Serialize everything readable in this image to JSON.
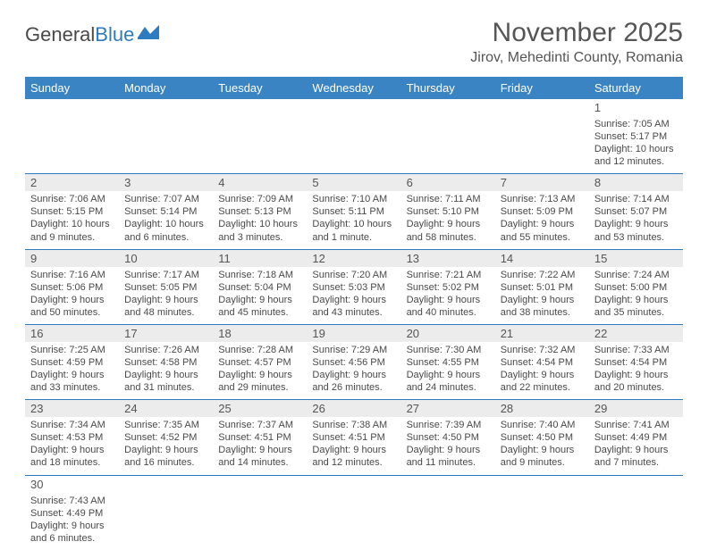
{
  "logo": {
    "text1": "General",
    "text2": "Blue"
  },
  "title": "November 2025",
  "subtitle": "Jirov, Mehedinti County, Romania",
  "colors": {
    "header_bg": "#3b84c4",
    "border": "#2f7bbf",
    "num_bg": "#ececec",
    "text": "#4a4a4a"
  },
  "weekdays": [
    "Sunday",
    "Monday",
    "Tuesday",
    "Wednesday",
    "Thursday",
    "Friday",
    "Saturday"
  ],
  "weeks": [
    [
      null,
      null,
      null,
      null,
      null,
      null,
      {
        "n": "1",
        "sunrise": "Sunrise: 7:05 AM",
        "sunset": "Sunset: 5:17 PM",
        "day": "Daylight: 10 hours and 12 minutes."
      }
    ],
    [
      {
        "n": "2",
        "sunrise": "Sunrise: 7:06 AM",
        "sunset": "Sunset: 5:15 PM",
        "day": "Daylight: 10 hours and 9 minutes."
      },
      {
        "n": "3",
        "sunrise": "Sunrise: 7:07 AM",
        "sunset": "Sunset: 5:14 PM",
        "day": "Daylight: 10 hours and 6 minutes."
      },
      {
        "n": "4",
        "sunrise": "Sunrise: 7:09 AM",
        "sunset": "Sunset: 5:13 PM",
        "day": "Daylight: 10 hours and 3 minutes."
      },
      {
        "n": "5",
        "sunrise": "Sunrise: 7:10 AM",
        "sunset": "Sunset: 5:11 PM",
        "day": "Daylight: 10 hours and 1 minute."
      },
      {
        "n": "6",
        "sunrise": "Sunrise: 7:11 AM",
        "sunset": "Sunset: 5:10 PM",
        "day": "Daylight: 9 hours and 58 minutes."
      },
      {
        "n": "7",
        "sunrise": "Sunrise: 7:13 AM",
        "sunset": "Sunset: 5:09 PM",
        "day": "Daylight: 9 hours and 55 minutes."
      },
      {
        "n": "8",
        "sunrise": "Sunrise: 7:14 AM",
        "sunset": "Sunset: 5:07 PM",
        "day": "Daylight: 9 hours and 53 minutes."
      }
    ],
    [
      {
        "n": "9",
        "sunrise": "Sunrise: 7:16 AM",
        "sunset": "Sunset: 5:06 PM",
        "day": "Daylight: 9 hours and 50 minutes."
      },
      {
        "n": "10",
        "sunrise": "Sunrise: 7:17 AM",
        "sunset": "Sunset: 5:05 PM",
        "day": "Daylight: 9 hours and 48 minutes."
      },
      {
        "n": "11",
        "sunrise": "Sunrise: 7:18 AM",
        "sunset": "Sunset: 5:04 PM",
        "day": "Daylight: 9 hours and 45 minutes."
      },
      {
        "n": "12",
        "sunrise": "Sunrise: 7:20 AM",
        "sunset": "Sunset: 5:03 PM",
        "day": "Daylight: 9 hours and 43 minutes."
      },
      {
        "n": "13",
        "sunrise": "Sunrise: 7:21 AM",
        "sunset": "Sunset: 5:02 PM",
        "day": "Daylight: 9 hours and 40 minutes."
      },
      {
        "n": "14",
        "sunrise": "Sunrise: 7:22 AM",
        "sunset": "Sunset: 5:01 PM",
        "day": "Daylight: 9 hours and 38 minutes."
      },
      {
        "n": "15",
        "sunrise": "Sunrise: 7:24 AM",
        "sunset": "Sunset: 5:00 PM",
        "day": "Daylight: 9 hours and 35 minutes."
      }
    ],
    [
      {
        "n": "16",
        "sunrise": "Sunrise: 7:25 AM",
        "sunset": "Sunset: 4:59 PM",
        "day": "Daylight: 9 hours and 33 minutes."
      },
      {
        "n": "17",
        "sunrise": "Sunrise: 7:26 AM",
        "sunset": "Sunset: 4:58 PM",
        "day": "Daylight: 9 hours and 31 minutes."
      },
      {
        "n": "18",
        "sunrise": "Sunrise: 7:28 AM",
        "sunset": "Sunset: 4:57 PM",
        "day": "Daylight: 9 hours and 29 minutes."
      },
      {
        "n": "19",
        "sunrise": "Sunrise: 7:29 AM",
        "sunset": "Sunset: 4:56 PM",
        "day": "Daylight: 9 hours and 26 minutes."
      },
      {
        "n": "20",
        "sunrise": "Sunrise: 7:30 AM",
        "sunset": "Sunset: 4:55 PM",
        "day": "Daylight: 9 hours and 24 minutes."
      },
      {
        "n": "21",
        "sunrise": "Sunrise: 7:32 AM",
        "sunset": "Sunset: 4:54 PM",
        "day": "Daylight: 9 hours and 22 minutes."
      },
      {
        "n": "22",
        "sunrise": "Sunrise: 7:33 AM",
        "sunset": "Sunset: 4:54 PM",
        "day": "Daylight: 9 hours and 20 minutes."
      }
    ],
    [
      {
        "n": "23",
        "sunrise": "Sunrise: 7:34 AM",
        "sunset": "Sunset: 4:53 PM",
        "day": "Daylight: 9 hours and 18 minutes."
      },
      {
        "n": "24",
        "sunrise": "Sunrise: 7:35 AM",
        "sunset": "Sunset: 4:52 PM",
        "day": "Daylight: 9 hours and 16 minutes."
      },
      {
        "n": "25",
        "sunrise": "Sunrise: 7:37 AM",
        "sunset": "Sunset: 4:51 PM",
        "day": "Daylight: 9 hours and 14 minutes."
      },
      {
        "n": "26",
        "sunrise": "Sunrise: 7:38 AM",
        "sunset": "Sunset: 4:51 PM",
        "day": "Daylight: 9 hours and 12 minutes."
      },
      {
        "n": "27",
        "sunrise": "Sunrise: 7:39 AM",
        "sunset": "Sunset: 4:50 PM",
        "day": "Daylight: 9 hours and 11 minutes."
      },
      {
        "n": "28",
        "sunrise": "Sunrise: 7:40 AM",
        "sunset": "Sunset: 4:50 PM",
        "day": "Daylight: 9 hours and 9 minutes."
      },
      {
        "n": "29",
        "sunrise": "Sunrise: 7:41 AM",
        "sunset": "Sunset: 4:49 PM",
        "day": "Daylight: 9 hours and 7 minutes."
      }
    ],
    [
      {
        "n": "30",
        "sunrise": "Sunrise: 7:43 AM",
        "sunset": "Sunset: 4:49 PM",
        "day": "Daylight: 9 hours and 6 minutes."
      },
      null,
      null,
      null,
      null,
      null,
      null
    ]
  ]
}
